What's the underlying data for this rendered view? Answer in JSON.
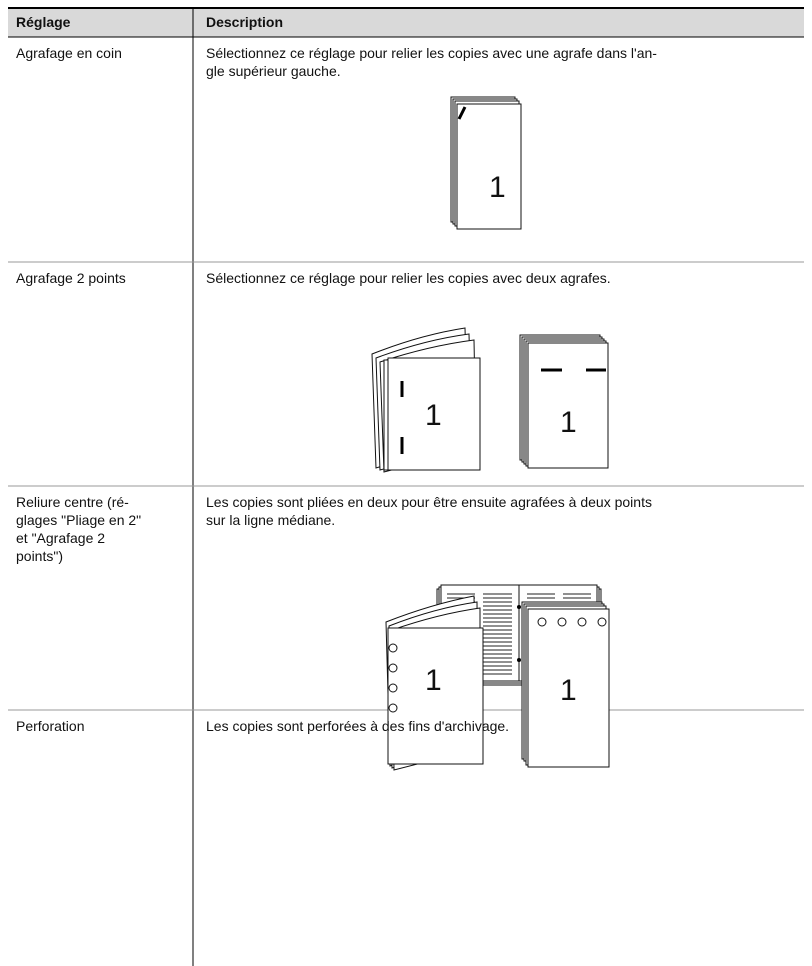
{
  "table": {
    "header": [
      "Réglage",
      "Description"
    ],
    "rows": [
      {
        "setting": [
          "Agrafage en coin"
        ],
        "description": [
          "Sélectionnez ce réglage pour relier les copies avec une agrafe dans l'an-",
          "gle supérieur gauche."
        ],
        "figure_labels": [
          "1"
        ]
      },
      {
        "setting": [
          "Agrafage 2 points"
        ],
        "description": [
          "Sélectionnez ce réglage pour relier les copies avec deux agrafes."
        ],
        "figure_labels": [
          "1",
          "1"
        ]
      },
      {
        "setting": [
          "Reliure centre (ré-",
          "glages \"Pliage en 2\"",
          "et \"Agrafage 2",
          "points\")"
        ],
        "description": [
          "Les copies sont pliées en deux pour être ensuite agrafées à deux points",
          "sur la ligne médiane."
        ]
      },
      {
        "setting": [
          "Perforation"
        ],
        "description": [
          "Les copies sont perforées à des fins d'archivage."
        ],
        "figure_labels": [
          "1",
          "1"
        ]
      }
    ]
  }
}
